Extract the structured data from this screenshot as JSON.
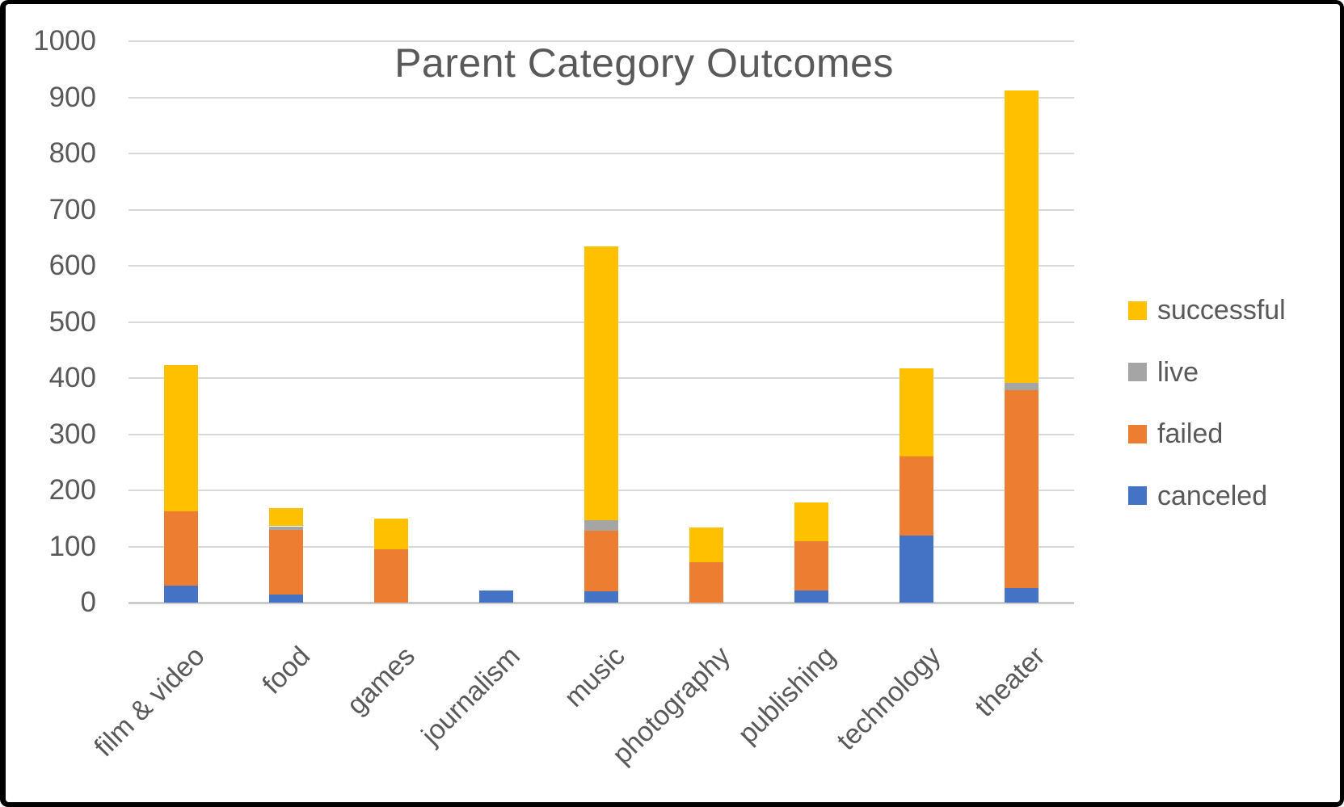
{
  "chart_data": {
    "type": "bar",
    "stacked": true,
    "title": "Parent Category Outcomes",
    "categories": [
      "film & video",
      "food",
      "games",
      "journalism",
      "music",
      "photography",
      "publishing",
      "technology",
      "theater"
    ],
    "series": [
      {
        "name": "canceled",
        "color": "#4472C4",
        "values": [
          30,
          15,
          0,
          22,
          20,
          0,
          22,
          120,
          26
        ]
      },
      {
        "name": "failed",
        "color": "#ED7D31",
        "values": [
          132,
          115,
          95,
          0,
          108,
          72,
          88,
          140,
          352
        ]
      },
      {
        "name": "live",
        "color": "#A5A5A5",
        "values": [
          0,
          6,
          0,
          0,
          19,
          0,
          0,
          0,
          14
        ]
      },
      {
        "name": "successful",
        "color": "#FFC000",
        "values": [
          261,
          33,
          54,
          0,
          488,
          62,
          68,
          157,
          520
        ]
      }
    ],
    "totals": [
      423,
      169,
      149,
      22,
      635,
      134,
      178,
      417,
      912
    ],
    "xlabel": "",
    "ylabel": "",
    "ylim": [
      0,
      1000
    ],
    "yticks": [
      0,
      100,
      200,
      300,
      400,
      500,
      600,
      700,
      800,
      900,
      1000
    ],
    "grid": true,
    "legend": {
      "position": "right",
      "items": [
        "successful",
        "live",
        "failed",
        "canceled"
      ]
    }
  }
}
